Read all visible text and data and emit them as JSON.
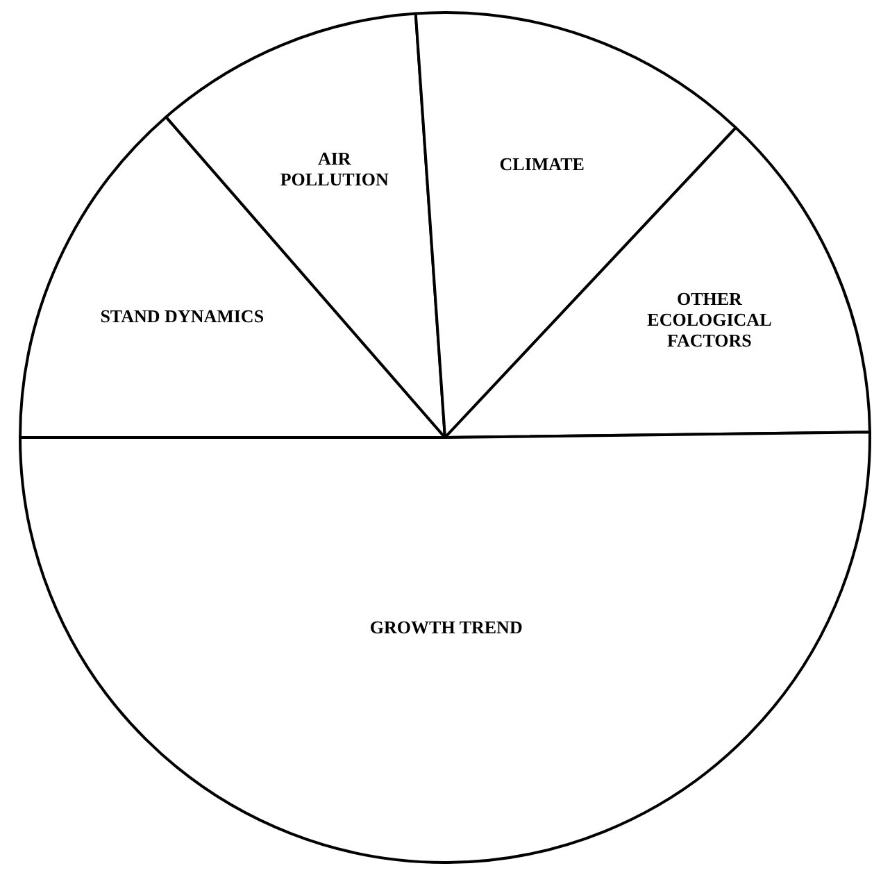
{
  "chart_data": {
    "type": "pie",
    "categories": [
      "STAND DYNAMICS",
      "AIR POLLUTION",
      "CLIMATE",
      "OTHER ECOLOGICAL FACTORS",
      "GROWTH TREND"
    ],
    "values": [
      13.6,
      10.3,
      13.1,
      12.8,
      50.2
    ],
    "colors": [
      "#ffffff",
      "#ffffff",
      "#ffffff",
      "#ffffff",
      "#ffffff"
    ],
    "legend": false
  }
}
